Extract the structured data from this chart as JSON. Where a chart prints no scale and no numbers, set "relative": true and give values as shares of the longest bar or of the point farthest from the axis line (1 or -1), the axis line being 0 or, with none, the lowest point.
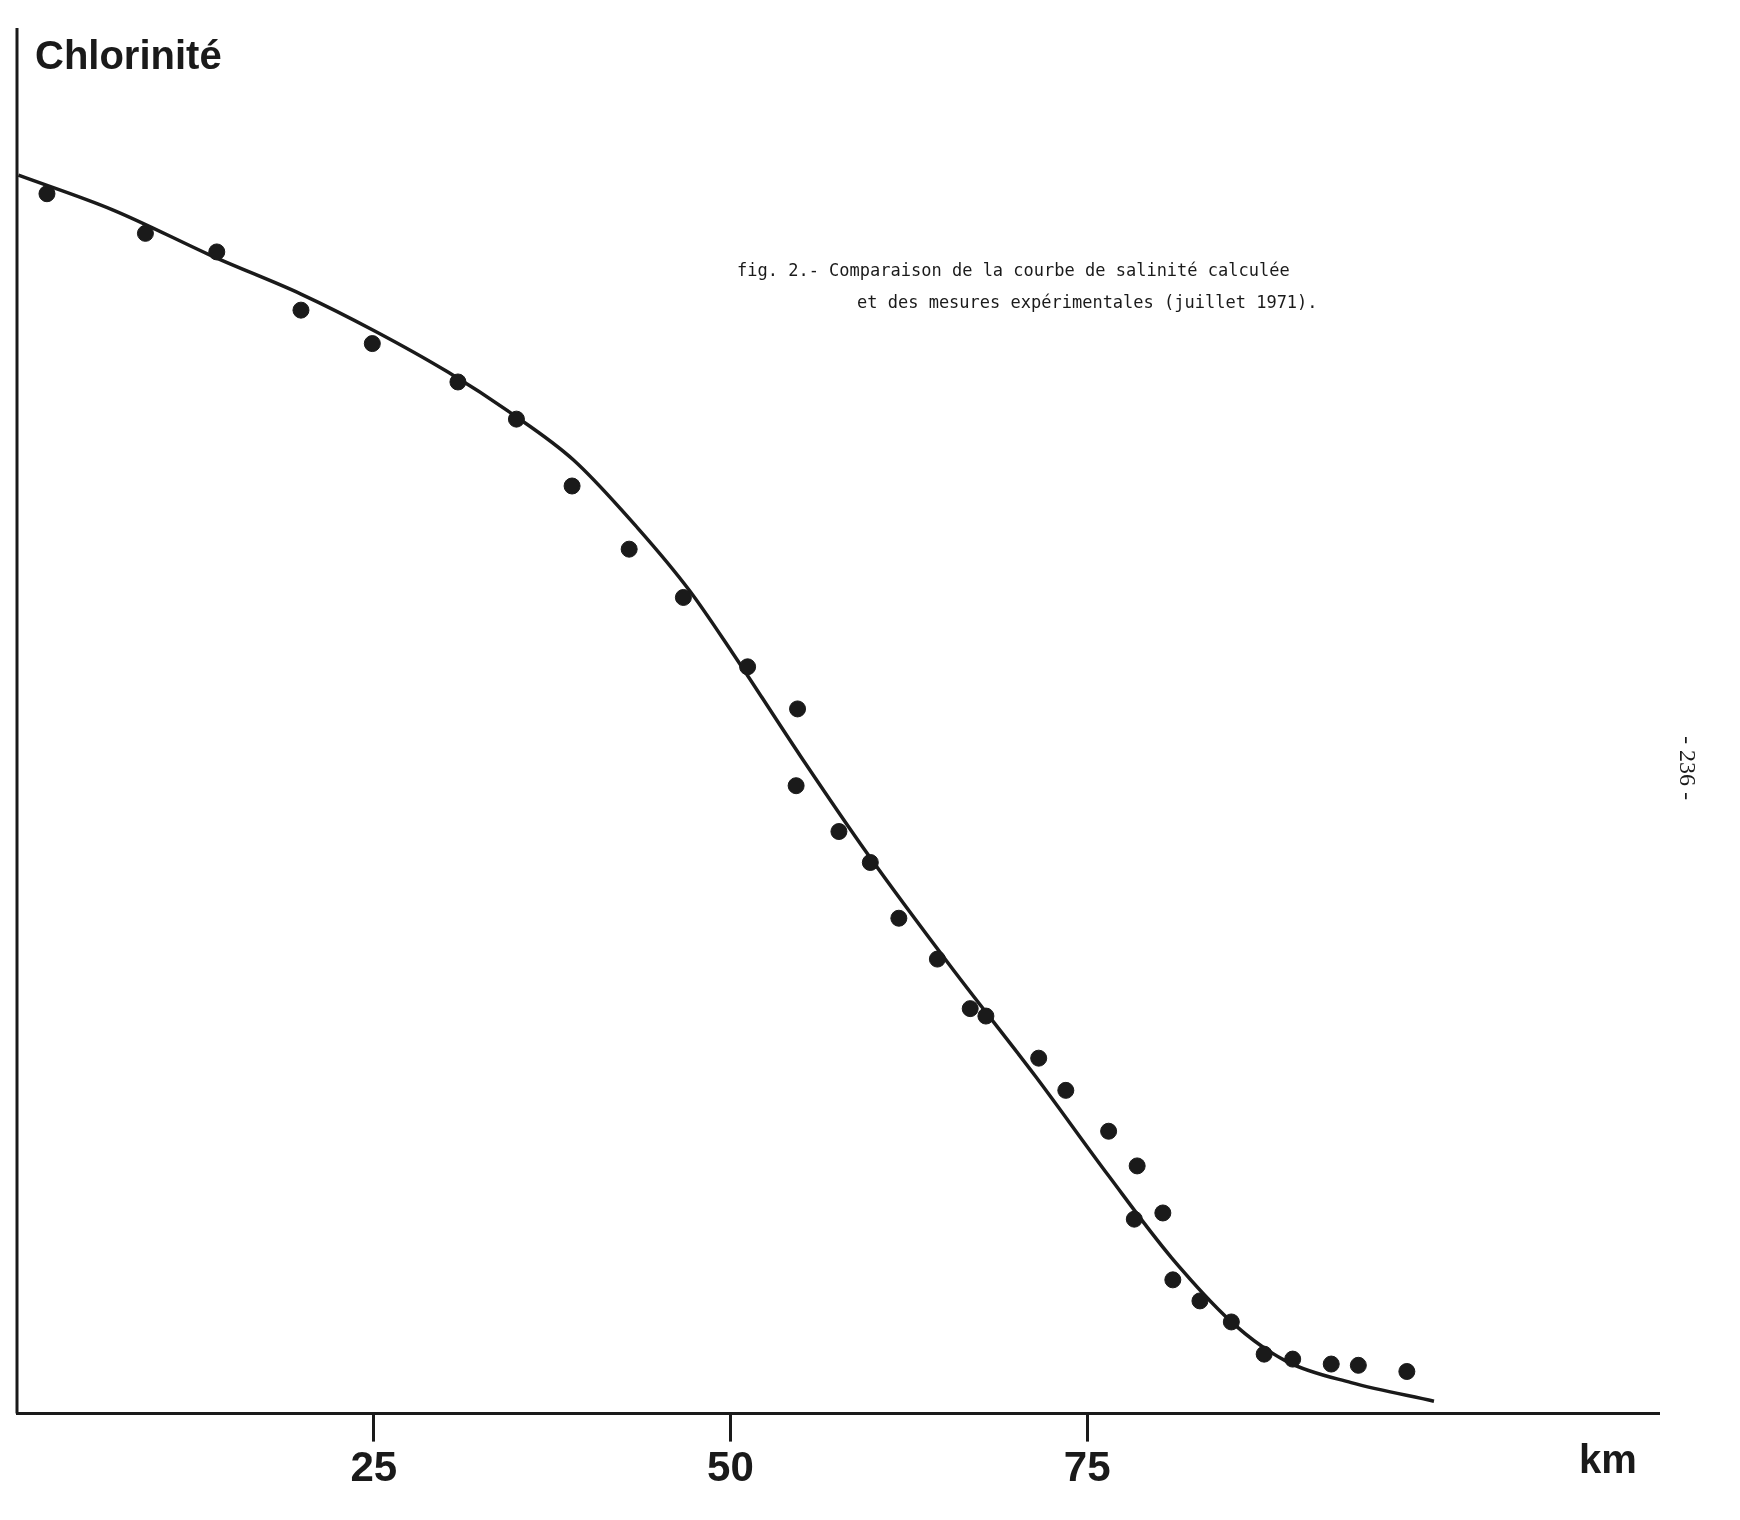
{
  "chart_data": {
    "type": "scatter",
    "xlabel": "km",
    "relative": true,
    "xlim": [
      0,
      115
    ],
    "xticks": [
      25,
      50,
      75
    ],
    "grid": false,
    "legend": false,
    "marker": "circle",
    "annotations": [
      "Chlorinité",
      "fig. 2.- Comparaison de la courbe de salinité calculée\net des mesures expérimentales (juillet 1971).",
      "- 236 -"
    ],
    "series": [
      {
        "color": "#1a1a1a",
        "x": [
          2.1,
          9.0,
          14.0,
          19.9,
          24.9,
          30.9,
          35.0,
          38.9,
          42.9,
          46.7,
          51.2,
          54.7,
          54.6,
          57.6,
          59.8,
          61.8,
          64.5,
          66.8,
          67.9,
          71.6,
          73.5,
          76.5,
          78.5,
          78.3,
          80.3,
          81.0,
          82.9,
          85.1,
          87.4,
          89.4,
          92.1,
          94.0,
          97.4
        ],
        "values": [
          0.985,
          0.953,
          0.938,
          0.891,
          0.864,
          0.833,
          0.803,
          0.749,
          0.698,
          0.659,
          0.603,
          0.569,
          0.507,
          0.47,
          0.445,
          0.4,
          0.367,
          0.327,
          0.321,
          0.287,
          0.261,
          0.228,
          0.2,
          0.157,
          0.162,
          0.108,
          0.091,
          0.074,
          0.048,
          0.044,
          0.04,
          0.039,
          0.034
        ]
      },
      {
        "type": "line",
        "color": "#1a1a1a",
        "line_style": "solid",
        "marker": "none",
        "x": [
          0.1,
          6.7,
          14.0,
          19.9,
          25.1,
          30.2,
          34.6,
          39.0,
          43.5,
          47.1,
          50.1,
          54.9,
          59.6,
          65.5,
          71.4,
          76.5,
          80.9,
          85.4,
          89.0,
          93.5,
          99.3
        ],
        "values": [
          1.0,
          0.972,
          0.933,
          0.904,
          0.874,
          0.841,
          0.808,
          0.77,
          0.715,
          0.665,
          0.615,
          0.531,
          0.452,
          0.36,
          0.272,
          0.192,
          0.126,
          0.071,
          0.042,
          0.025,
          0.01
        ]
      }
    ]
  }
}
